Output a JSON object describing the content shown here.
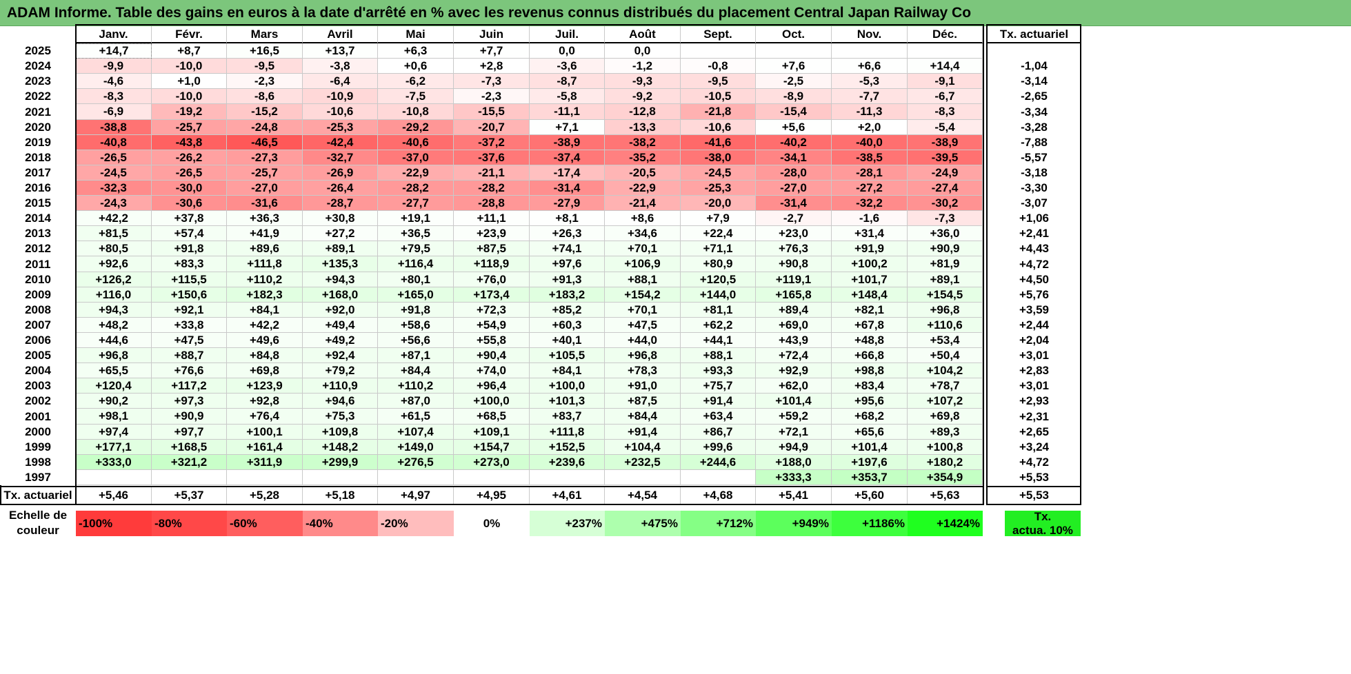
{
  "title": "ADAM Informe. Table des gains en euros à la date d'arrêté en % avec les revenus connus distribués du placement Central Japan Railway Co",
  "months": [
    "Janv.",
    "Févr.",
    "Mars",
    "Avril",
    "Mai",
    "Juin",
    "Juil.",
    "Août",
    "Sept.",
    "Oct.",
    "Nov.",
    "Déc."
  ],
  "tx_header": "Tx. actuariel",
  "rows": [
    {
      "year": "2025",
      "cells": [
        "+14,7",
        "+8,7",
        "+16,5",
        "+13,7",
        "+6,3",
        "+7,7",
        "0,0",
        "0,0",
        "",
        "",
        "",
        ""
      ],
      "tx": ""
    },
    {
      "year": "2024",
      "cells": [
        "-9,9",
        "-10,0",
        "-9,5",
        "-3,8",
        "+0,6",
        "+2,8",
        "-3,6",
        "-1,2",
        "-0,8",
        "+7,6",
        "+6,6",
        "+14,4"
      ],
      "tx": "-1,04"
    },
    {
      "year": "2023",
      "cells": [
        "-4,6",
        "+1,0",
        "-2,3",
        "-6,4",
        "-6,2",
        "-7,3",
        "-8,7",
        "-9,3",
        "-9,5",
        "-2,5",
        "-5,3",
        "-9,1"
      ],
      "tx": "-3,14"
    },
    {
      "year": "2022",
      "cells": [
        "-8,3",
        "-10,0",
        "-8,6",
        "-10,9",
        "-7,5",
        "-2,3",
        "-5,8",
        "-9,2",
        "-10,5",
        "-8,9",
        "-7,7",
        "-6,7"
      ],
      "tx": "-2,65"
    },
    {
      "year": "2021",
      "cells": [
        "-6,9",
        "-19,2",
        "-15,2",
        "-10,6",
        "-10,8",
        "-15,5",
        "-11,1",
        "-12,8",
        "-21,8",
        "-15,4",
        "-11,3",
        "-8,3"
      ],
      "tx": "-3,34"
    },
    {
      "year": "2020",
      "cells": [
        "-38,8",
        "-25,7",
        "-24,8",
        "-25,3",
        "-29,2",
        "-20,7",
        "+7,1",
        "-13,3",
        "-10,6",
        "+5,6",
        "+2,0",
        "-5,4"
      ],
      "tx": "-3,28"
    },
    {
      "year": "2019",
      "cells": [
        "-40,8",
        "-43,8",
        "-46,5",
        "-42,4",
        "-40,6",
        "-37,2",
        "-38,9",
        "-38,2",
        "-41,6",
        "-40,2",
        "-40,0",
        "-38,9"
      ],
      "tx": "-7,88"
    },
    {
      "year": "2018",
      "cells": [
        "-26,5",
        "-26,2",
        "-27,3",
        "-32,7",
        "-37,0",
        "-37,6",
        "-37,4",
        "-35,2",
        "-38,0",
        "-34,1",
        "-38,5",
        "-39,5"
      ],
      "tx": "-5,57"
    },
    {
      "year": "2017",
      "cells": [
        "-24,5",
        "-26,5",
        "-25,7",
        "-26,9",
        "-22,9",
        "-21,1",
        "-17,4",
        "-20,5",
        "-24,5",
        "-28,0",
        "-28,1",
        "-24,9"
      ],
      "tx": "-3,18"
    },
    {
      "year": "2016",
      "cells": [
        "-32,3",
        "-30,0",
        "-27,0",
        "-26,4",
        "-28,2",
        "-28,2",
        "-31,4",
        "-22,9",
        "-25,3",
        "-27,0",
        "-27,2",
        "-27,4"
      ],
      "tx": "-3,30"
    },
    {
      "year": "2015",
      "cells": [
        "-24,3",
        "-30,6",
        "-31,6",
        "-28,7",
        "-27,7",
        "-28,8",
        "-27,9",
        "-21,4",
        "-20,0",
        "-31,4",
        "-32,2",
        "-30,2"
      ],
      "tx": "-3,07"
    },
    {
      "year": "2014",
      "cells": [
        "+42,2",
        "+37,8",
        "+36,3",
        "+30,8",
        "+19,1",
        "+11,1",
        "+8,1",
        "+8,6",
        "+7,9",
        "-2,7",
        "-1,6",
        "-7,3"
      ],
      "tx": "+1,06"
    },
    {
      "year": "2013",
      "cells": [
        "+81,5",
        "+57,4",
        "+41,9",
        "+27,2",
        "+36,5",
        "+23,9",
        "+26,3",
        "+34,6",
        "+22,4",
        "+23,0",
        "+31,4",
        "+36,0"
      ],
      "tx": "+2,41"
    },
    {
      "year": "2012",
      "cells": [
        "+80,5",
        "+91,8",
        "+89,6",
        "+89,1",
        "+79,5",
        "+87,5",
        "+74,1",
        "+70,1",
        "+71,1",
        "+76,3",
        "+91,9",
        "+90,9"
      ],
      "tx": "+4,43"
    },
    {
      "year": "2011",
      "cells": [
        "+92,6",
        "+83,3",
        "+111,8",
        "+135,3",
        "+116,4",
        "+118,9",
        "+97,6",
        "+106,9",
        "+80,9",
        "+90,8",
        "+100,2",
        "+81,9"
      ],
      "tx": "+4,72"
    },
    {
      "year": "2010",
      "cells": [
        "+126,2",
        "+115,5",
        "+110,2",
        "+94,3",
        "+80,1",
        "+76,0",
        "+91,3",
        "+88,1",
        "+120,5",
        "+119,1",
        "+101,7",
        "+89,1"
      ],
      "tx": "+4,50"
    },
    {
      "year": "2009",
      "cells": [
        "+116,0",
        "+150,6",
        "+182,3",
        "+168,0",
        "+165,0",
        "+173,4",
        "+183,2",
        "+154,2",
        "+144,0",
        "+165,8",
        "+148,4",
        "+154,5"
      ],
      "tx": "+5,76"
    },
    {
      "year": "2008",
      "cells": [
        "+94,3",
        "+92,1",
        "+84,1",
        "+92,0",
        "+91,8",
        "+72,3",
        "+85,2",
        "+70,1",
        "+81,1",
        "+89,4",
        "+82,1",
        "+96,8"
      ],
      "tx": "+3,59"
    },
    {
      "year": "2007",
      "cells": [
        "+48,2",
        "+33,8",
        "+42,2",
        "+49,4",
        "+58,6",
        "+54,9",
        "+60,3",
        "+47,5",
        "+62,2",
        "+69,0",
        "+67,8",
        "+110,6"
      ],
      "tx": "+2,44"
    },
    {
      "year": "2006",
      "cells": [
        "+44,6",
        "+47,5",
        "+49,6",
        "+49,2",
        "+56,6",
        "+55,8",
        "+40,1",
        "+44,0",
        "+44,1",
        "+43,9",
        "+48,8",
        "+53,4"
      ],
      "tx": "+2,04"
    },
    {
      "year": "2005",
      "cells": [
        "+96,8",
        "+88,7",
        "+84,8",
        "+92,4",
        "+87,1",
        "+90,4",
        "+105,5",
        "+96,8",
        "+88,1",
        "+72,4",
        "+66,8",
        "+50,4"
      ],
      "tx": "+3,01"
    },
    {
      "year": "2004",
      "cells": [
        "+65,5",
        "+76,6",
        "+69,8",
        "+79,2",
        "+84,4",
        "+74,0",
        "+84,1",
        "+78,3",
        "+93,3",
        "+92,9",
        "+98,8",
        "+104,2"
      ],
      "tx": "+2,83"
    },
    {
      "year": "2003",
      "cells": [
        "+120,4",
        "+117,2",
        "+123,9",
        "+110,9",
        "+110,2",
        "+96,4",
        "+100,0",
        "+91,0",
        "+75,7",
        "+62,0",
        "+83,4",
        "+78,7"
      ],
      "tx": "+3,01"
    },
    {
      "year": "2002",
      "cells": [
        "+90,2",
        "+97,3",
        "+92,8",
        "+94,6",
        "+87,0",
        "+100,0",
        "+101,3",
        "+87,5",
        "+91,4",
        "+101,4",
        "+95,6",
        "+107,2"
      ],
      "tx": "+2,93"
    },
    {
      "year": "2001",
      "cells": [
        "+98,1",
        "+90,9",
        "+76,4",
        "+75,3",
        "+61,5",
        "+68,5",
        "+83,7",
        "+84,4",
        "+63,4",
        "+59,2",
        "+68,2",
        "+69,8"
      ],
      "tx": "+2,31"
    },
    {
      "year": "2000",
      "cells": [
        "+97,4",
        "+97,7",
        "+100,1",
        "+109,8",
        "+107,4",
        "+109,1",
        "+111,8",
        "+91,4",
        "+86,7",
        "+72,1",
        "+65,6",
        "+89,3"
      ],
      "tx": "+2,65"
    },
    {
      "year": "1999",
      "cells": [
        "+177,1",
        "+168,5",
        "+161,4",
        "+148,2",
        "+149,0",
        "+154,7",
        "+152,5",
        "+104,4",
        "+99,6",
        "+94,9",
        "+101,4",
        "+100,8"
      ],
      "tx": "+3,24"
    },
    {
      "year": "1998",
      "cells": [
        "+333,0",
        "+321,2",
        "+311,9",
        "+299,9",
        "+276,5",
        "+273,0",
        "+239,6",
        "+232,5",
        "+244,6",
        "+188,0",
        "+197,6",
        "+180,2"
      ],
      "tx": "+4,72"
    },
    {
      "year": "1997",
      "cells": [
        "",
        "",
        "",
        "",
        "",
        "",
        "",
        "",
        "",
        "+333,3",
        "+353,7",
        "+354,9"
      ],
      "tx": "+5,53"
    }
  ],
  "footer": {
    "label": "Tx. actuariel",
    "cells": [
      "+5,46",
      "+5,37",
      "+5,28",
      "+5,18",
      "+4,97",
      "+4,95",
      "+4,61",
      "+4,54",
      "+4,68",
      "+5,41",
      "+5,60",
      "+5,63"
    ],
    "tx": "+5,53"
  },
  "legend": {
    "label_line1": "Echelle de",
    "label_line2": "couleur",
    "items": [
      {
        "text": "-100%",
        "color": "#ff3b3b",
        "align": "left"
      },
      {
        "text": "-80%",
        "color": "#ff4848",
        "align": "left"
      },
      {
        "text": "-60%",
        "color": "#ff5e5e",
        "align": "left"
      },
      {
        "text": "-40%",
        "color": "#ff8a8a",
        "align": "left"
      },
      {
        "text": "-20%",
        "color": "#ffbdbd",
        "align": "left"
      },
      {
        "text": "0%",
        "color": "#ffffff",
        "align": "center"
      },
      {
        "text": "+237%",
        "color": "#d6ffd6",
        "align": "right"
      },
      {
        "text": "+475%",
        "color": "#adffad",
        "align": "right"
      },
      {
        "text": "+712%",
        "color": "#85ff85",
        "align": "right"
      },
      {
        "text": "+949%",
        "color": "#5cff5c",
        "align": "right"
      },
      {
        "text": "+1186%",
        "color": "#3dff3d",
        "align": "right"
      },
      {
        "text": "+1424%",
        "color": "#1fff1f",
        "align": "right"
      }
    ],
    "tx_line1": "Tx.",
    "tx_line2": "actua. 10%",
    "tx_color": "#22ee22"
  },
  "colors": {
    "title_bg": "#7cc67c",
    "negative_max": "#ff4d4d",
    "positive_max": "#5cff5c"
  }
}
